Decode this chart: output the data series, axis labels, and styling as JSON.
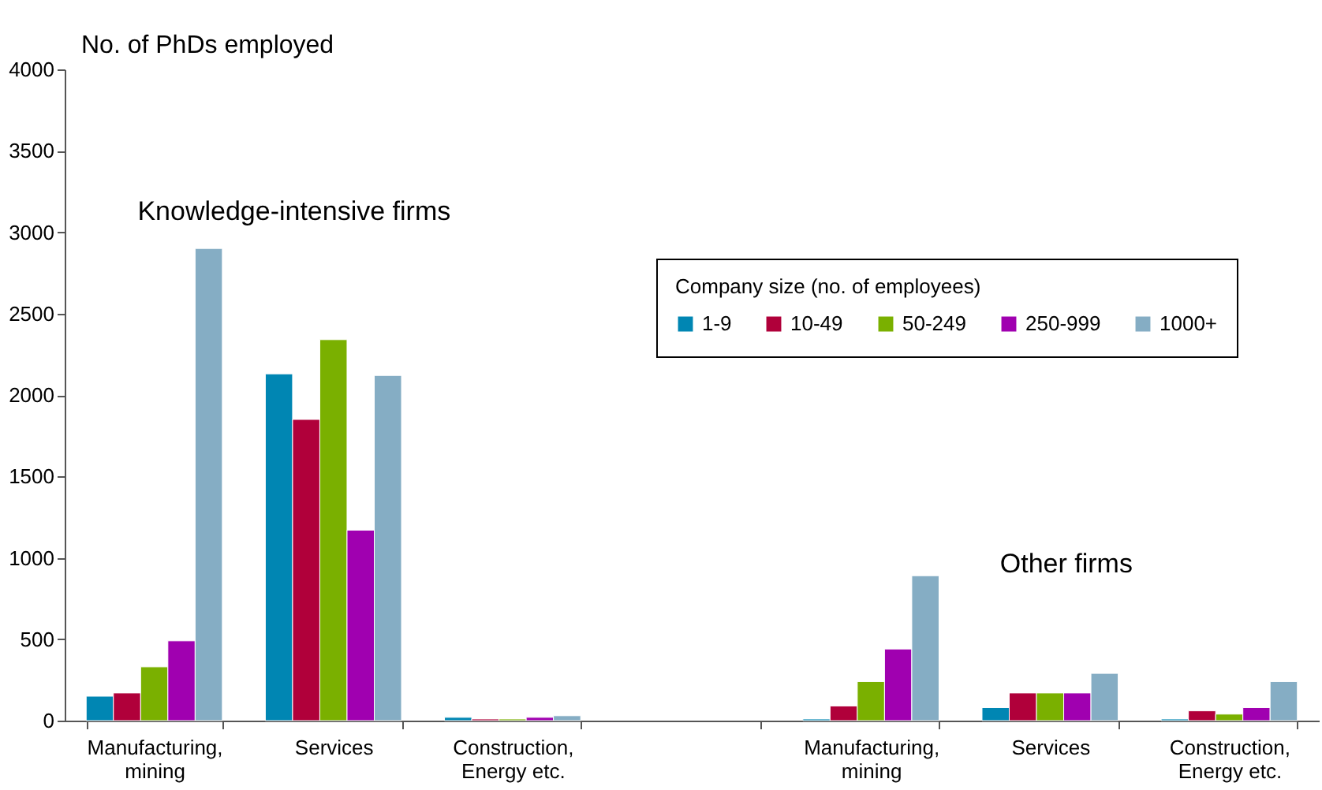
{
  "chart_data": {
    "type": "bar",
    "ylabel": "No. of PhDs employed",
    "legend_title": "Company size (no. of employees)",
    "legend": "top right",
    "grid": false,
    "categories": [
      "Manufacturing, mining",
      "Services",
      "Construction, Energy etc.",
      null,
      "Manufacturing, mining",
      "Services",
      "Construction, Energy etc."
    ],
    "series": [
      {
        "name": "1-9",
        "color": "#0086b3",
        "values": [
          150,
          2130,
          20,
          null,
          10,
          80,
          10
        ]
      },
      {
        "name": "10-49",
        "color": "#b0003a",
        "values": [
          170,
          1850,
          10,
          null,
          90,
          170,
          60
        ]
      },
      {
        "name": "50-249",
        "color": "#7ab000",
        "values": [
          330,
          2340,
          10,
          null,
          240,
          170,
          40
        ]
      },
      {
        "name": "250-999",
        "color": "#a000b0",
        "values": [
          490,
          1170,
          20,
          null,
          440,
          170,
          80
        ]
      },
      {
        "name": "1000+",
        "color": "#85adc4",
        "values": [
          2900,
          2120,
          30,
          null,
          890,
          290,
          240
        ]
      }
    ],
    "ylim": [
      0,
      4000
    ],
    "yticks": [
      0,
      500,
      1000,
      1500,
      2000,
      2500,
      3000,
      3500,
      4000
    ],
    "annotations": [
      "Knowledge-intensive firms",
      "Other firms"
    ]
  }
}
